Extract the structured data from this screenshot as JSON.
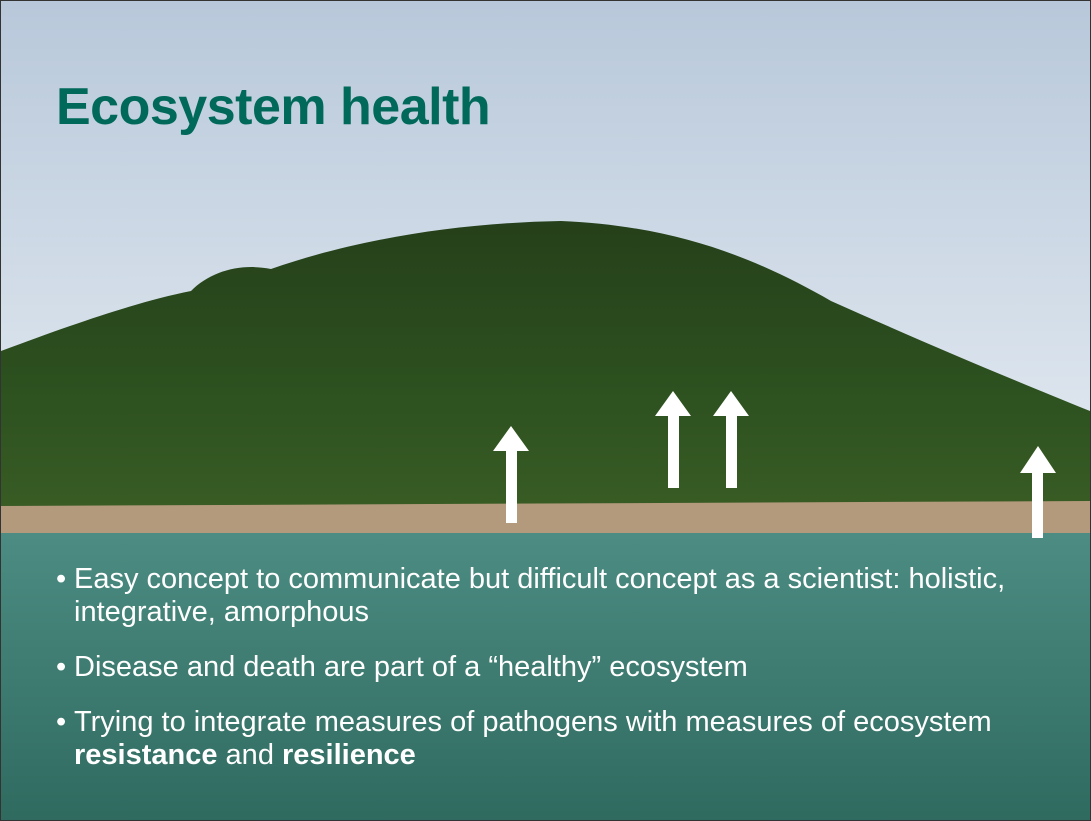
{
  "slide": {
    "title": "Ecosystem health",
    "bullets": [
      {
        "segments": [
          {
            "text": "Easy concept to communicate but difficult concept as a scientist: holistic, integrative, amorphous",
            "bold": false
          }
        ]
      },
      {
        "segments": [
          {
            "text": "Disease and death are part of a “healthy” ecosystem",
            "bold": false
          }
        ]
      },
      {
        "segments": [
          {
            "text": "Trying to integrate measures of pathogens with measures of ecosystem ",
            "bold": false
          },
          {
            "text": "resistance",
            "bold": true
          },
          {
            "text": " and ",
            "bold": false
          },
          {
            "text": "resilience",
            "bold": true
          }
        ]
      }
    ]
  }
}
